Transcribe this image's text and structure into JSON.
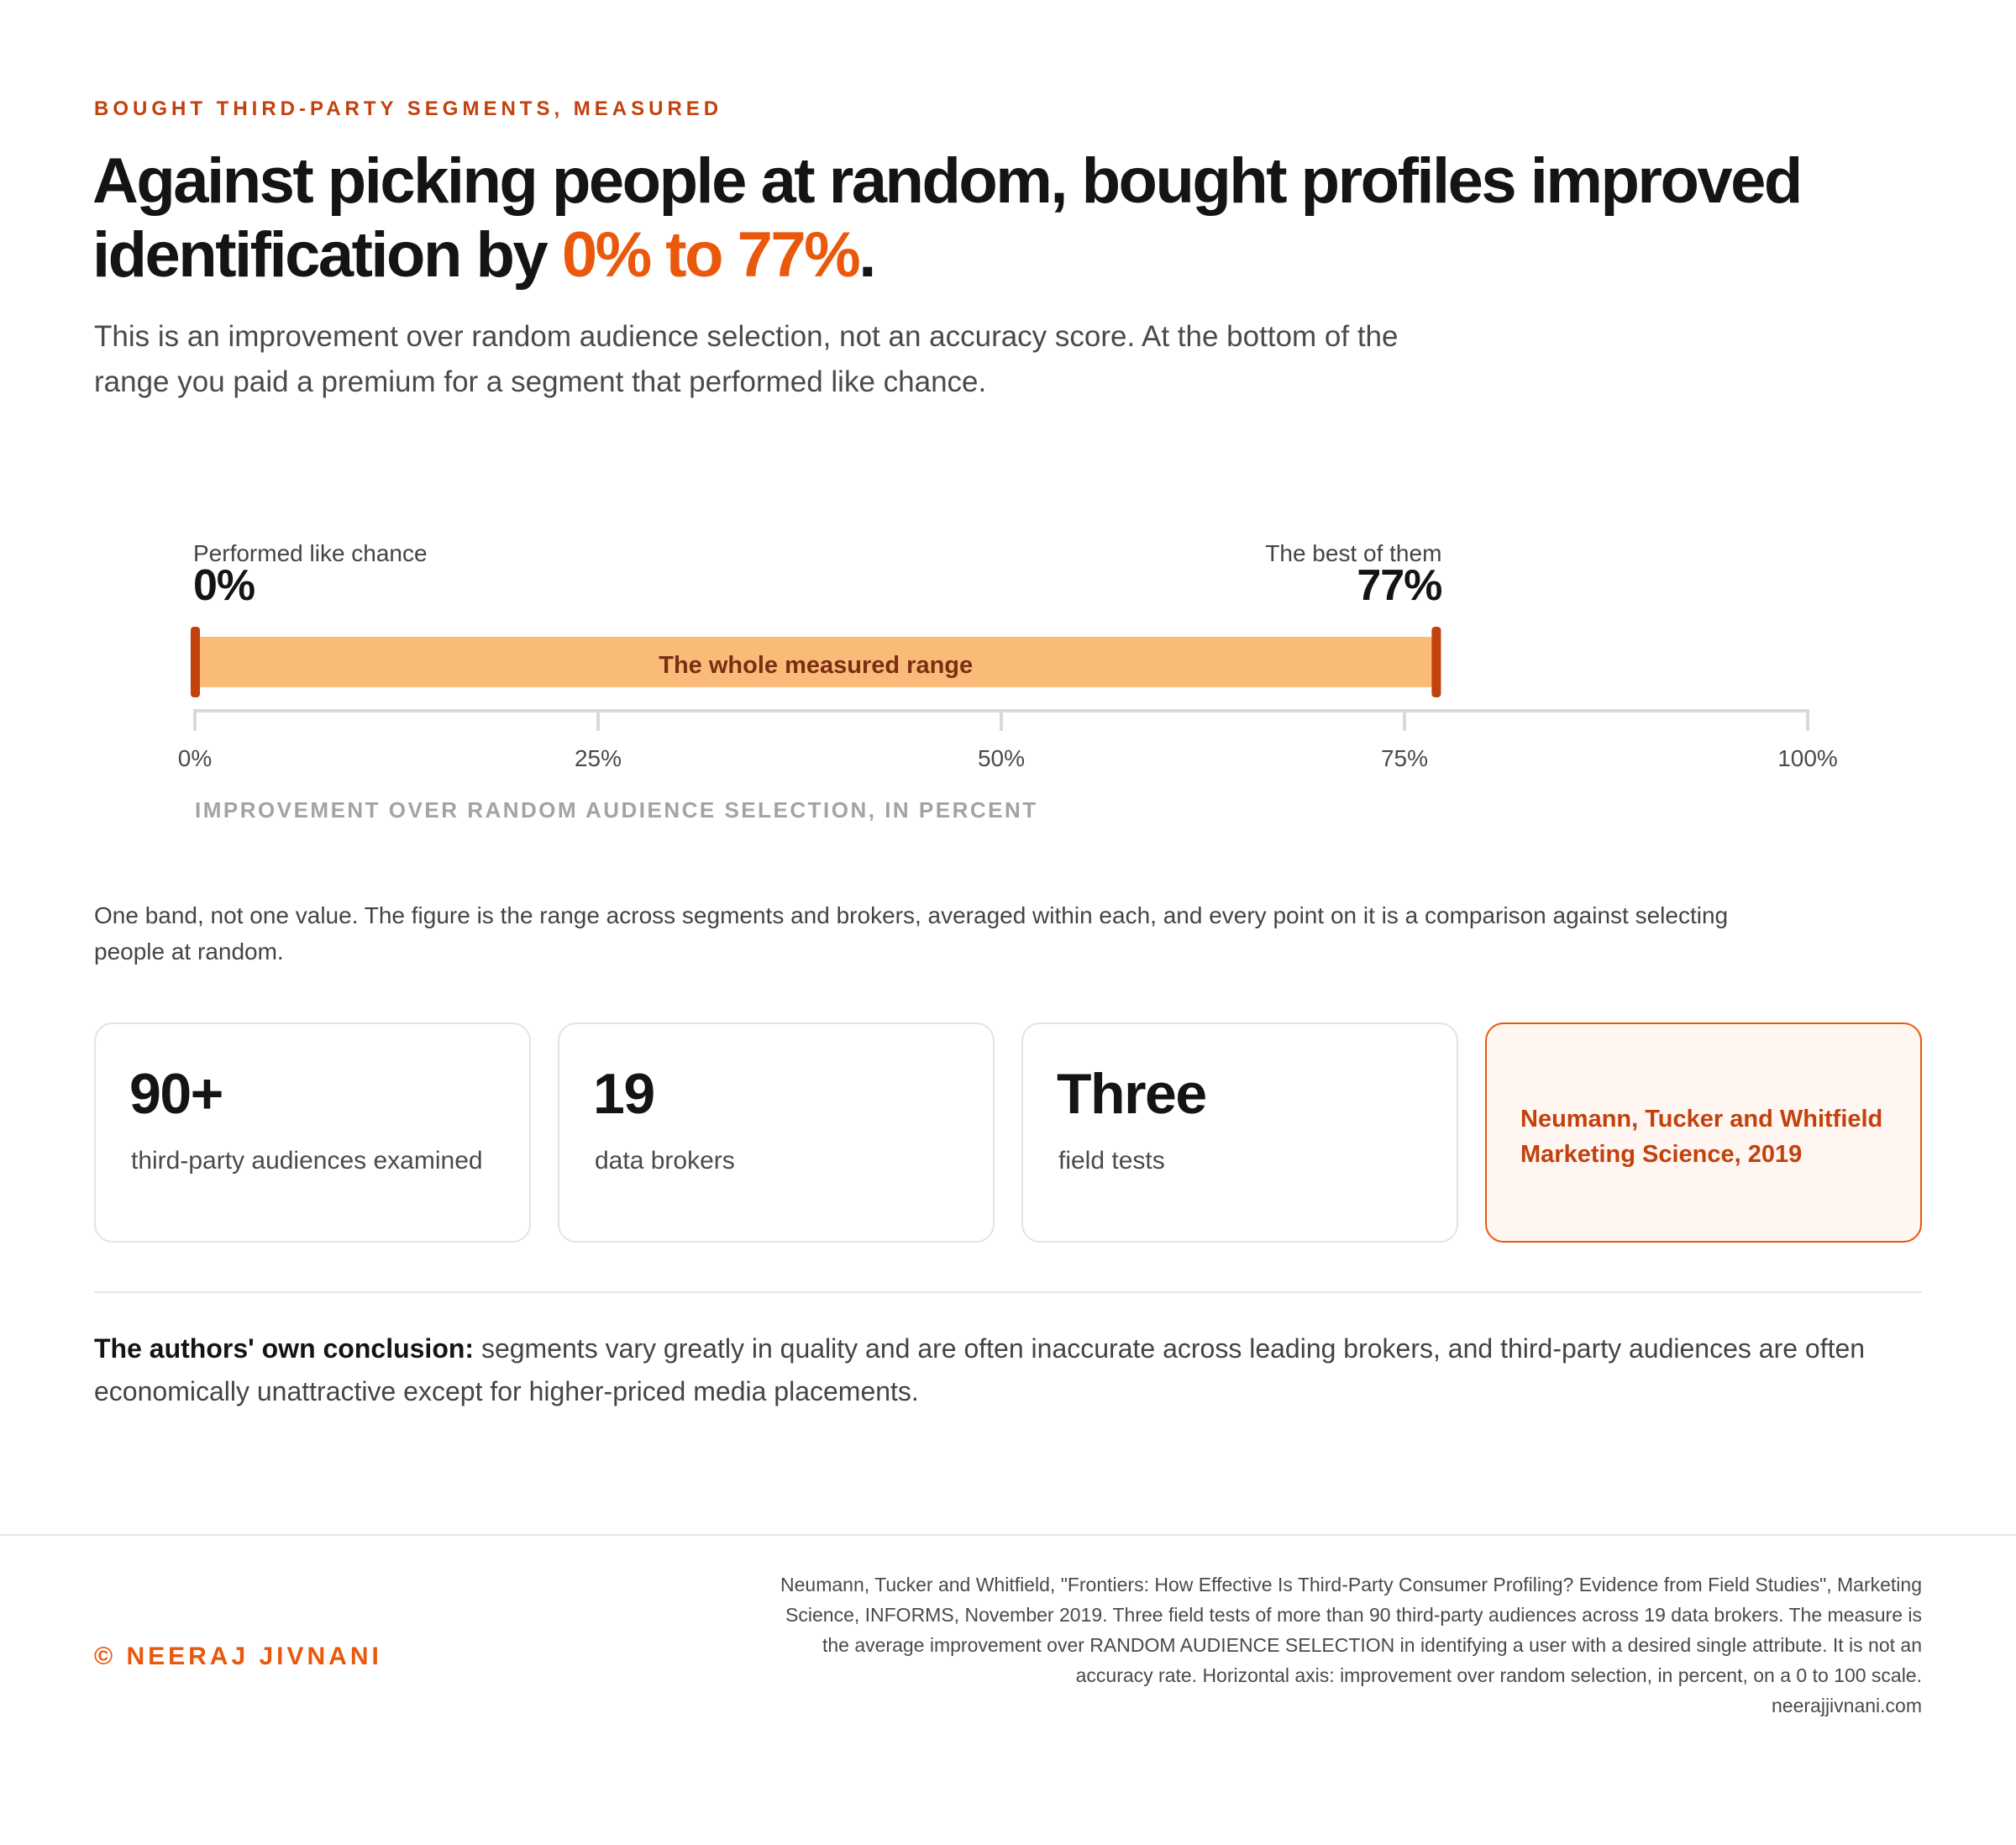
{
  "eyebrow": "BOUGHT THIRD-PARTY SEGMENTS, MEASURED",
  "headline": {
    "text": "Against picking people at random, bought profiles improved identification by",
    "highlight": "0% to 77%",
    "end": "."
  },
  "lede": "This is an improvement over random audience selection, not an accuracy score. At the bottom of the range you paid a premium for a segment that performed like chance.",
  "chart_data": {
    "type": "bar",
    "orientation": "horizontal",
    "range": {
      "low": 0,
      "high": 77,
      "label": "The whole measured range",
      "low_caption": "Performed like chance",
      "high_caption": "The best of them",
      "low_value_label": "0%",
      "high_value_label": "77%"
    },
    "xlim": [
      0,
      100
    ],
    "ticks": [
      {
        "value": 0,
        "label": "0%"
      },
      {
        "value": 25,
        "label": "25%"
      },
      {
        "value": 50,
        "label": "50%"
      },
      {
        "value": 75,
        "label": "75%"
      },
      {
        "value": 100,
        "label": "100%"
      }
    ],
    "xlabel": "IMPROVEMENT OVER RANDOM AUDIENCE SELECTION, IN PERCENT",
    "grid": false,
    "colors": {
      "band": "#fbbb78",
      "band_end": "#c2410c",
      "band_text": "#7c2d12",
      "axis": "#d9d9d9",
      "tick_text": "#4a4a4a",
      "xlabel": "#a3a3a3"
    }
  },
  "note": "One band, not one value. The figure is the range across segments and brokers, averaged within each, and every point on it is a comparison against selecting people at random.",
  "stats": [
    {
      "value": "90+",
      "label": "third-party audiences examined"
    },
    {
      "value": "19",
      "label": "data brokers"
    },
    {
      "value": "Three",
      "label": "field tests"
    }
  ],
  "citation": {
    "line1": "Neumann, Tucker and Whitfield",
    "line2": "Marketing Science, 2019"
  },
  "conclusion": {
    "lead": "The authors' own conclusion:",
    "text": " segments vary greatly in quality and are often inaccurate across leading brokers, and third-party audiences are often economically unattractive except for higher-priced media placements."
  },
  "footer": {
    "brand": "© NEERAJ JIVNANI",
    "source": "Neumann, Tucker and Whitfield, \"Frontiers: How Effective Is Third-Party Consumer Profiling? Evidence from Field Studies\", Marketing Science, INFORMS, November 2019. Three field tests of more than 90 third-party audiences across 19 data brokers. The measure is the average improvement over RANDOM AUDIENCE SELECTION in identifying a user with a desired single attribute. It is not an accuracy rate. Horizontal axis: improvement over random selection, in percent, on a 0 to 100 scale.",
    "url": "neerajjivnani.com"
  },
  "colors": {
    "accent": "#ea580c",
    "accent_dark": "#c2410c"
  }
}
